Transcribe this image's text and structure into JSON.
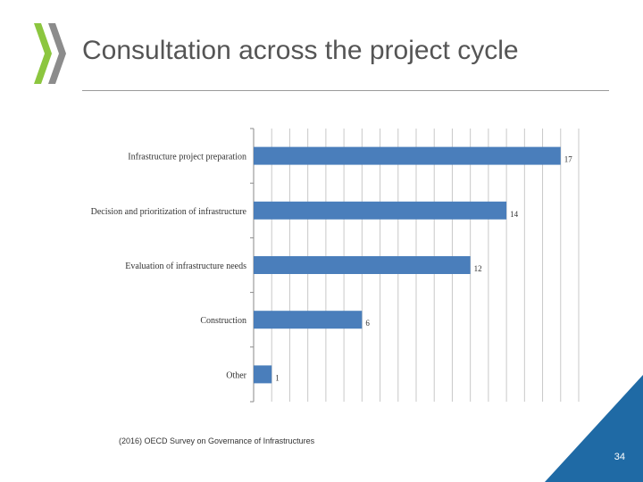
{
  "slide": {
    "title": "Consultation across the project cycle",
    "source": "(2016) OECD Survey on Governance of Infrastructures",
    "page_number": "34"
  },
  "colors": {
    "bar": "#4a7ebb",
    "logo_green": "#8cc63f",
    "logo_gray": "#8c8c8c",
    "corner_blue": "#1f6aa5",
    "grid": "#c8c8c8"
  },
  "chart_data": {
    "type": "bar",
    "orientation": "horizontal",
    "categories": [
      "Infrastructure project preparation",
      "Decision and prioritization of infrastructure",
      "Evaluation of infrastructure needs",
      "Construction",
      "Other"
    ],
    "values": [
      17,
      14,
      12,
      6,
      1
    ],
    "data_labels": [
      "17",
      "14",
      "12",
      "6",
      "1"
    ],
    "xlim": [
      0,
      18
    ],
    "grid": true
  }
}
